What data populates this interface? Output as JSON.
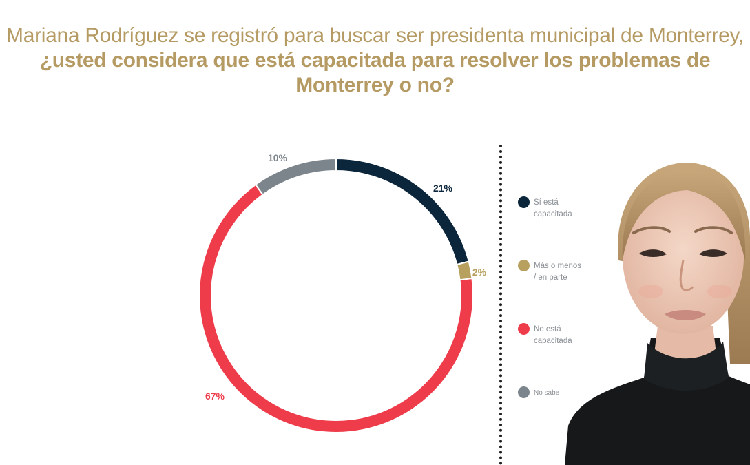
{
  "title": {
    "plain": "Mariana Rodríguez se registró para buscar ser presidenta municipal de Monterrey, ",
    "bold": "¿usted considera que está capacitada para resolver los problemas de Monterrey o no?"
  },
  "colors": {
    "title": "#b59b63",
    "navy": "#0b253b",
    "gold": "#b8a05f",
    "red": "#ee3c4b",
    "gray": "#7d858c"
  },
  "chart_data": {
    "type": "pie",
    "style": "donut",
    "categories": [
      "Sí está\ncapacitada",
      "Más o menos\n/ en parte",
      "No está\ncapacitada",
      "No sabe"
    ],
    "values": [
      21,
      2,
      67,
      10
    ],
    "labels": [
      "21%",
      "2%",
      "67%",
      "10%"
    ],
    "colors": [
      "#0b253b",
      "#b8a05f",
      "#ee3c4b",
      "#7d858c"
    ],
    "legend_position": "right"
  }
}
